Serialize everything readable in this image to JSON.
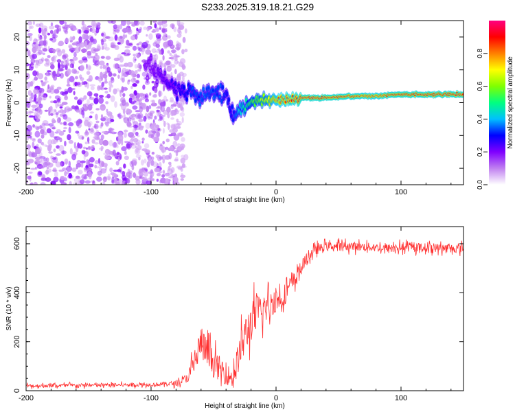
{
  "title": "S233.2025.319.18.21.G29",
  "chart_data": [
    {
      "type": "heatmap",
      "name": "spectrogram",
      "xlabel": "Height of straight line (km)",
      "ylabel": "Frequency (Hz)",
      "xlim": [
        -200,
        150
      ],
      "ylim": [
        -25,
        25
      ],
      "xticks": [
        -200,
        -100,
        0,
        100
      ],
      "yticks": [
        -20,
        -10,
        0,
        10,
        20
      ],
      "colorbar": {
        "label": "Normalized spectral amplitude",
        "range": [
          0,
          1
        ],
        "ticks": [
          0.0,
          0.2,
          0.4,
          0.6,
          0.8
        ],
        "tick_labels": [
          "0.0",
          "0.2",
          "0.4",
          "0.6",
          "0.8"
        ],
        "colors": [
          "#ffffff",
          "#c080f0",
          "#8000ff",
          "#0000ff",
          "#00c0ff",
          "#00ff80",
          "#80ff00",
          "#ffff00",
          "#ff8000",
          "#ff0000",
          "#ff0080"
        ]
      },
      "features": {
        "noise_region_x": [
          -200,
          -80
        ],
        "signal_track": {
          "x": [
            -100,
            -90,
            -80,
            -70,
            -60,
            -50,
            -40,
            -35,
            -30,
            -20,
            -10,
            0,
            10,
            20,
            40,
            60,
            80,
            100,
            120,
            150
          ],
          "freq": [
            11,
            7,
            4,
            3,
            2,
            3,
            3,
            -3,
            -2,
            0,
            1,
            0.5,
            1,
            1.5,
            1.5,
            2,
            2,
            2.5,
            2.5,
            2.5
          ],
          "amplitude": [
            0.15,
            0.2,
            0.25,
            0.3,
            0.35,
            0.35,
            0.3,
            0.3,
            0.4,
            0.55,
            0.65,
            0.8,
            0.85,
            0.9,
            0.9,
            0.88,
            0.85,
            0.9,
            0.9,
            0.9
          ]
        }
      }
    },
    {
      "type": "line",
      "name": "snr",
      "xlabel": "Height of straight line (km)",
      "ylabel": "SNR (10 * v/v)",
      "xlim": [
        -200,
        150
      ],
      "ylim": [
        0,
        670
      ],
      "xticks": [
        -200,
        -100,
        0,
        100
      ],
      "yticks": [
        0,
        200,
        400,
        600
      ],
      "color": "#ff3030",
      "series": [
        {
          "name": "SNR",
          "x": [
            -200,
            -150,
            -100,
            -80,
            -75,
            -70,
            -65,
            -60,
            -55,
            -50,
            -45,
            -40,
            -35,
            -30,
            -25,
            -20,
            -15,
            -10,
            -5,
            0,
            5,
            10,
            15,
            20,
            25,
            30,
            40,
            50,
            60,
            80,
            90,
            100,
            120,
            150
          ],
          "mean": [
            20,
            22,
            25,
            30,
            40,
            60,
            120,
            200,
            150,
            110,
            90,
            70,
            50,
            140,
            220,
            280,
            320,
            330,
            350,
            370,
            380,
            420,
            450,
            500,
            540,
            570,
            590,
            590,
            590,
            585,
            580,
            585,
            585,
            580
          ],
          "spread": [
            15,
            15,
            15,
            20,
            25,
            50,
            120,
            140,
            120,
            110,
            100,
            90,
            80,
            130,
            160,
            160,
            150,
            130,
            110,
            100,
            90,
            80,
            70,
            60,
            50,
            40,
            35,
            35,
            35,
            35,
            40,
            35,
            35,
            35
          ]
        }
      ]
    }
  ]
}
